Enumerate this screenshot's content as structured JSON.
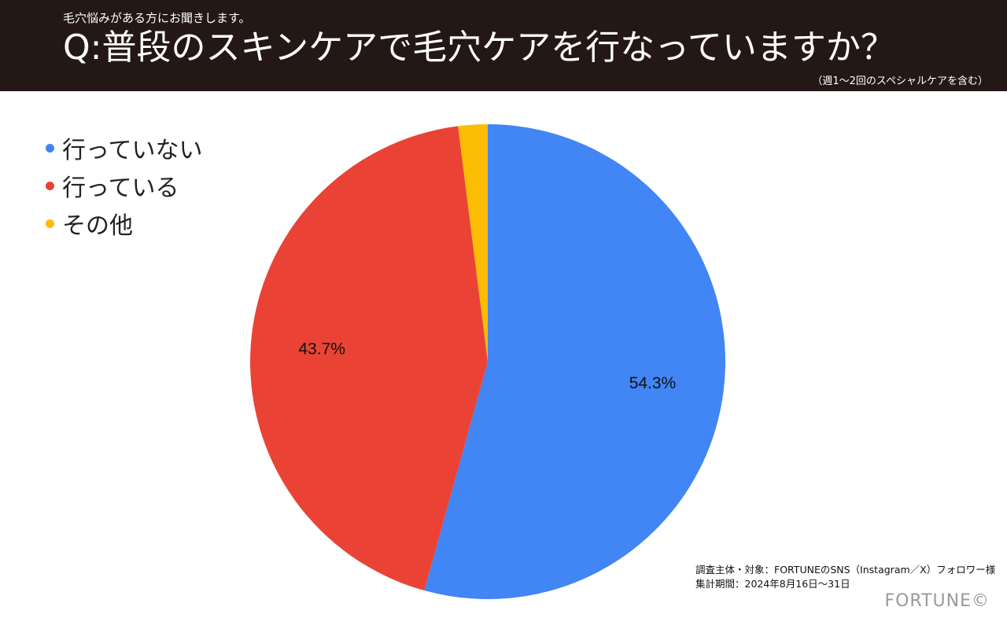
{
  "header": {
    "subtitle": "毛穴悩みがある方にお聞きします。",
    "title": "Q:普段のスキンケアで毛穴ケアを行なっていますか？",
    "note": "（週1〜2回のスペシャルケアを含む）"
  },
  "chart_data": {
    "type": "pie",
    "title": "Q:普段のスキンケアで毛穴ケアを行なっていますか？",
    "categories": [
      "行っていない",
      "行っている",
      "その他"
    ],
    "values": [
      54.3,
      43.7,
      2.0
    ],
    "data_labels": [
      "54.3%",
      "43.7%",
      ""
    ],
    "colors": [
      "#4285f4",
      "#ea4335",
      "#fbbc04"
    ],
    "legend": "top-left"
  },
  "footnote": {
    "line1": "調査主体・対象：FORTUNEのSNS（Instagram／X）フォロワー様",
    "line2": "集計期間：2024年8月16日〜31日"
  },
  "brand": "FORTUNE©"
}
